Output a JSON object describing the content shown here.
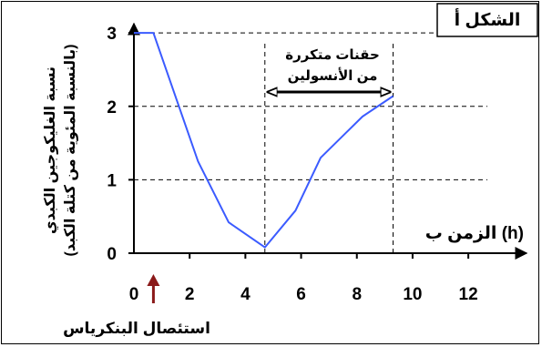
{
  "figure_label": "الشكل أ",
  "chart_data": {
    "type": "line",
    "x": [
      0,
      0.7,
      2.3,
      3.4,
      4.7,
      5.8,
      6.7,
      8.2,
      9.3
    ],
    "y": [
      3,
      3,
      1.25,
      0.42,
      0.08,
      0.58,
      1.3,
      1.86,
      2.14
    ],
    "xlim": [
      0,
      13.5
    ],
    "ylim": [
      0,
      3.2
    ],
    "x_ticks": [
      "0",
      "2",
      "4",
      "6",
      "8",
      "10",
      "12"
    ],
    "y_ticks": [
      "0",
      "1",
      "2",
      "3"
    ],
    "xlabel": "الزمن ب (h)",
    "ylabel_line1": "نسبة الغليكوجين الكبدي",
    "ylabel_line2": "(بالنسبة المئوية من كتلة الكبد)",
    "line_color": "#3b5bff",
    "grid_dashed": true,
    "annotations": {
      "insulin_line1": "حقنات متكررة",
      "insulin_line2": "من الأنسولين",
      "insulin_from": 4.7,
      "insulin_to": 9.3,
      "pancreas_removal_label": "استئصال البنكرياس",
      "pancreas_removal_x": 0.7,
      "pancreas_arrow_color": "#8b1a1a"
    }
  }
}
